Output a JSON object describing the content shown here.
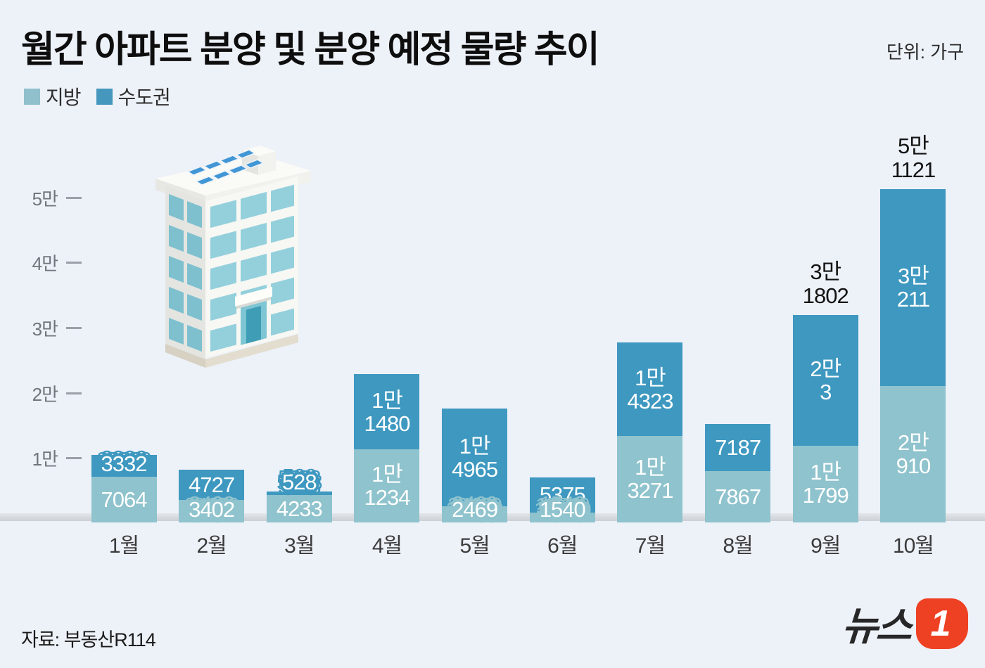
{
  "title": "월간 아파트 분양 및 분양 예정 물량 추이",
  "unit_label": "단위: 가구",
  "legend": [
    {
      "label": "지방",
      "color": "#8fc0cc"
    },
    {
      "label": "수도권",
      "color": "#4697bd"
    }
  ],
  "y_axis": {
    "ticks": [
      "5만",
      "4만",
      "3만",
      "2만",
      "1만"
    ]
  },
  "source": "자료: 부동산R114",
  "logo": {
    "text": "뉴스",
    "badge": "1",
    "badge_color": "#ee4023"
  },
  "colors": {
    "background": "#edf1f8",
    "local": "#8fc3cd",
    "capital": "#3e98c0"
  },
  "chart_data": {
    "type": "bar",
    "stacked": true,
    "title": "월간 아파트 분양 및 분양 예정 물량 추이",
    "ylabel": "가구",
    "ylim": [
      0,
      55000
    ],
    "y_tick_step": 10000,
    "grid": false,
    "legend_position": "top-left",
    "categories": [
      "1월",
      "2월",
      "3월",
      "4월",
      "5월",
      "6월",
      "7월",
      "8월",
      "9월",
      "10월"
    ],
    "series": [
      {
        "name": "지방",
        "color": "#8fc3cd",
        "values": [
          7064,
          3402,
          4233,
          11234,
          2469,
          1540,
          13271,
          7867,
          11799,
          20910
        ],
        "labels": [
          "7064",
          "3402",
          "4233",
          "1만 1234",
          "2469",
          "1540",
          "1만 3271",
          "7867",
          "1만 1799",
          "2만 910"
        ]
      },
      {
        "name": "수도권",
        "color": "#3e98c0",
        "values": [
          3332,
          4727,
          528,
          11480,
          14965,
          5375,
          14323,
          7187,
          20003,
          30211
        ],
        "labels": [
          "3332",
          "4727",
          "528",
          "1만 1480",
          "1만 4965",
          "5375",
          "1만 4323",
          "7187",
          "2만 3",
          "3만 211"
        ]
      }
    ],
    "totals": [
      10396,
      8129,
      4761,
      22714,
      17434,
      6915,
      27594,
      15054,
      31802,
      51121
    ],
    "total_labels": [
      "",
      "",
      "",
      "",
      "",
      "",
      "",
      "",
      "3만 1802",
      "5만 1121"
    ]
  }
}
